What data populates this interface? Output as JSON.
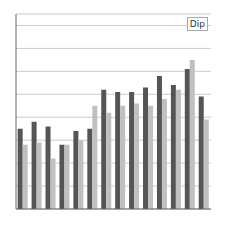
{
  "chart_data": {
    "type": "bar",
    "annotation": "Dip",
    "categories": [
      null,
      null,
      null,
      null,
      null,
      null,
      null,
      null,
      null,
      null,
      null,
      null,
      null,
      null
    ],
    "series": [
      {
        "color": "#555555",
        "values": [
          3.5,
          3.8,
          3.6,
          2.8,
          3.4,
          3.5,
          5.2,
          5.1,
          5.1,
          5.3,
          5.8,
          5.4,
          6.1,
          4.9
        ]
      },
      {
        "color": "#c0c0c0",
        "values": [
          2.8,
          2.9,
          2.2,
          2.8,
          3.0,
          4.5,
          4.2,
          4.5,
          4.6,
          4.5,
          4.8,
          5.2,
          6.5,
          3.9
        ]
      }
    ],
    "ylim": [
      0,
      8.5
    ],
    "yticks": [
      0,
      1,
      2,
      3,
      4,
      5,
      6,
      7,
      8
    ],
    "grid": true,
    "tick_labels": false
  }
}
